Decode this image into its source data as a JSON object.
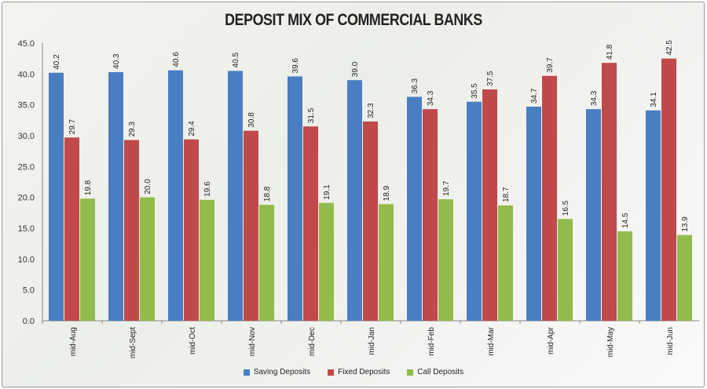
{
  "chart_data": {
    "type": "bar",
    "title": "DEPOSIT MIX OF COMMERCIAL BANKS",
    "xlabel": "",
    "ylabel": "",
    "ylim": [
      0,
      45
    ],
    "yticks": [
      "0.0",
      "5.0",
      "10.0",
      "15.0",
      "20.0",
      "25.0",
      "30.0",
      "35.0",
      "40.0",
      "45.0"
    ],
    "grid": false,
    "legend_position": "bottom",
    "categories": [
      "mid-Aug",
      "mid-Sept",
      "mid-Oct",
      "mid-Nov",
      "mid-Dec",
      "mid-Jan",
      "mid-Feb",
      "mid-Mar",
      "mid-Apr",
      "mid-May",
      "mid-Jun"
    ],
    "series": [
      {
        "name": "Saving Deposits",
        "color": "#4a7ec2",
        "values": [
          40.2,
          40.3,
          40.6,
          40.5,
          39.6,
          39.0,
          36.3,
          35.5,
          34.7,
          34.3,
          34.1
        ]
      },
      {
        "name": "Fixed Deposits",
        "color": "#c0494a",
        "values": [
          29.7,
          29.3,
          29.4,
          30.8,
          31.5,
          32.3,
          34.3,
          37.5,
          39.7,
          41.8,
          42.5
        ]
      },
      {
        "name": "Call Deposits",
        "color": "#93bb4c",
        "values": [
          19.8,
          20.0,
          19.6,
          18.8,
          19.1,
          18.9,
          19.7,
          18.7,
          16.5,
          14.5,
          13.9
        ]
      }
    ]
  }
}
